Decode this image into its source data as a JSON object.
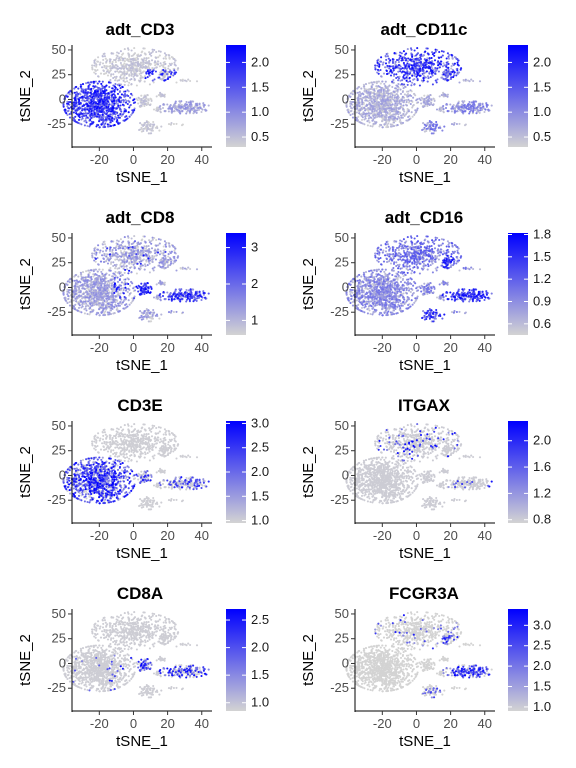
{
  "colors": {
    "low": "#d3d3d3",
    "high": "#0000ff"
  },
  "chart_data": [
    {
      "type": "scatter",
      "title": "adt_CD3",
      "xlabel": "tSNE_1",
      "ylabel": "tSNE_2",
      "xticks": [
        -20,
        0,
        20,
        40
      ],
      "yticks": [
        50,
        25,
        0,
        -25
      ],
      "xlim": [
        -36,
        46
      ],
      "ylim": [
        -48,
        55
      ],
      "legend": {
        "ticks": [
          2.0,
          1.5,
          1.0,
          0.5
        ],
        "min": 0.3,
        "max": 2.35,
        "placement": "right"
      },
      "highlight": {
        "mode": "cd3adt",
        "base": 0.3,
        "scale": 2.0
      }
    },
    {
      "type": "scatter",
      "title": "adt_CD11c",
      "xlabel": "tSNE_1",
      "ylabel": "tSNE_2",
      "xticks": [
        -20,
        0,
        20,
        40
      ],
      "yticks": [
        50,
        25,
        0,
        -25
      ],
      "xlim": [
        -36,
        46
      ],
      "ylim": [
        -48,
        55
      ],
      "legend": {
        "ticks": [
          2.0,
          1.5,
          1.0,
          0.5
        ],
        "min": 0.3,
        "max": 2.35,
        "placement": "right"
      },
      "highlight": {
        "mode": "cd11adt",
        "base": 0.3,
        "scale": 2.0
      }
    },
    {
      "type": "scatter",
      "title": "adt_CD8",
      "xlabel": "tSNE_1",
      "ylabel": "tSNE_2",
      "xticks": [
        -20,
        0,
        20,
        40
      ],
      "yticks": [
        50,
        25,
        0,
        -25
      ],
      "xlim": [
        -36,
        46
      ],
      "ylim": [
        -48,
        55
      ],
      "legend": {
        "ticks": [
          3,
          2,
          1
        ],
        "min": 0.6,
        "max": 3.4,
        "placement": "right"
      },
      "highlight": {
        "mode": "cd8adt",
        "base": 0.6,
        "scale": 2.8
      }
    },
    {
      "type": "scatter",
      "title": "adt_CD16",
      "xlabel": "tSNE_1",
      "ylabel": "tSNE_2",
      "xticks": [
        -20,
        0,
        20,
        40
      ],
      "yticks": [
        50,
        25,
        0,
        -25
      ],
      "xlim": [
        -36,
        46
      ],
      "ylim": [
        -48,
        55
      ],
      "legend": {
        "ticks": [
          1.8,
          1.5,
          1.2,
          0.9,
          0.6
        ],
        "min": 0.45,
        "max": 1.82,
        "placement": "right"
      },
      "highlight": {
        "mode": "cd16adt",
        "base": 0.45,
        "scale": 1.35
      }
    },
    {
      "type": "scatter",
      "title": "CD3E",
      "xlabel": "tSNE_1",
      "ylabel": "tSNE_2",
      "xticks": [
        -20,
        0,
        20,
        40
      ],
      "yticks": [
        50,
        25,
        0,
        -25
      ],
      "xlim": [
        -36,
        46
      ],
      "ylim": [
        -48,
        55
      ],
      "legend": {
        "ticks": [
          3.0,
          2.5,
          2.0,
          1.5,
          1.0
        ],
        "min": 0.95,
        "max": 3.05,
        "placement": "right"
      },
      "highlight": {
        "mode": "cd3e",
        "base": 0.95,
        "scale": 2.1
      }
    },
    {
      "type": "scatter",
      "title": "ITGAX",
      "xlabel": "tSNE_1",
      "ylabel": "tSNE_2",
      "xticks": [
        -20,
        0,
        20,
        40
      ],
      "yticks": [
        50,
        25,
        0,
        -25
      ],
      "xlim": [
        -36,
        46
      ],
      "ylim": [
        -48,
        55
      ],
      "legend": {
        "ticks": [
          2.0,
          1.6,
          1.2,
          0.8
        ],
        "min": 0.75,
        "max": 2.3,
        "placement": "right"
      },
      "highlight": {
        "mode": "itgax",
        "base": 0.75,
        "scale": 1.5
      }
    },
    {
      "type": "scatter",
      "title": "CD8A",
      "xlabel": "tSNE_1",
      "ylabel": "tSNE_2",
      "xticks": [
        -20,
        0,
        20,
        40
      ],
      "yticks": [
        50,
        25,
        0,
        -25
      ],
      "xlim": [
        -36,
        46
      ],
      "ylim": [
        -48,
        55
      ],
      "legend": {
        "ticks": [
          2.5,
          2.0,
          1.5,
          1.0
        ],
        "min": 0.85,
        "max": 2.7,
        "placement": "right"
      },
      "highlight": {
        "mode": "cd8a",
        "base": 0.85,
        "scale": 1.8
      }
    },
    {
      "type": "scatter",
      "title": "FCGR3A",
      "xlabel": "tSNE_1",
      "ylabel": "tSNE_2",
      "xticks": [
        -20,
        0,
        20,
        40
      ],
      "yticks": [
        50,
        25,
        0,
        -25
      ],
      "xlim": [
        -36,
        46
      ],
      "ylim": [
        -48,
        55
      ],
      "legend": {
        "ticks": [
          3.0,
          2.5,
          2.0,
          1.5,
          1.0
        ],
        "min": 0.9,
        "max": 3.4,
        "placement": "right"
      },
      "highlight": {
        "mode": "fcgr3a",
        "base": 0.9,
        "scale": 2.4
      }
    }
  ]
}
